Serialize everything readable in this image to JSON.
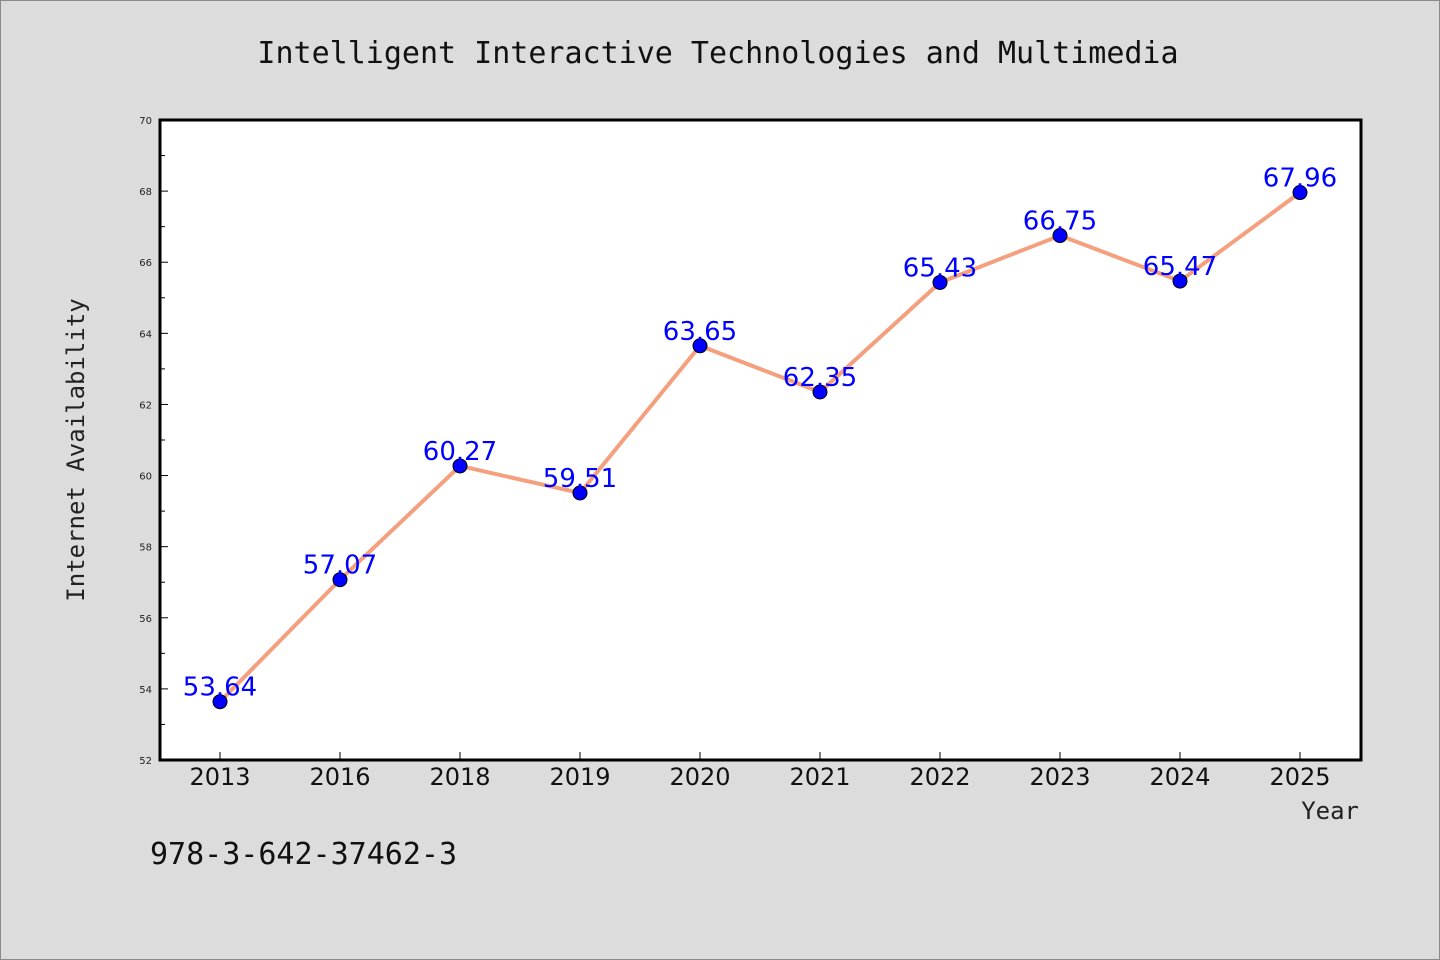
{
  "chart_data": {
    "type": "line",
    "title": "Intelligent Interactive Technologies and Multimedia",
    "xlabel": "Year",
    "ylabel": "Internet Availability",
    "categories": [
      "2013",
      "2016",
      "2018",
      "2019",
      "2020",
      "2021",
      "2022",
      "2023",
      "2024",
      "2025"
    ],
    "values": [
      53.64,
      57.07,
      60.27,
      59.51,
      63.65,
      62.35,
      65.43,
      66.75,
      65.47,
      67.96
    ],
    "value_labels": [
      "53.64",
      "57.07",
      "60.27",
      "59.51",
      "63.65",
      "62.35",
      "65.43",
      "66.75",
      "65.47",
      "67.96"
    ],
    "ylim": [
      52,
      70
    ],
    "yticks": [
      "52",
      "54",
      "56",
      "58",
      "60",
      "62",
      "64",
      "66",
      "68",
      "70"
    ],
    "grid": false,
    "line_color": "#f4a07e",
    "marker_color": "#0000ff",
    "label_color": "#0000ff",
    "annotation": "978-3-642-37462-3"
  }
}
